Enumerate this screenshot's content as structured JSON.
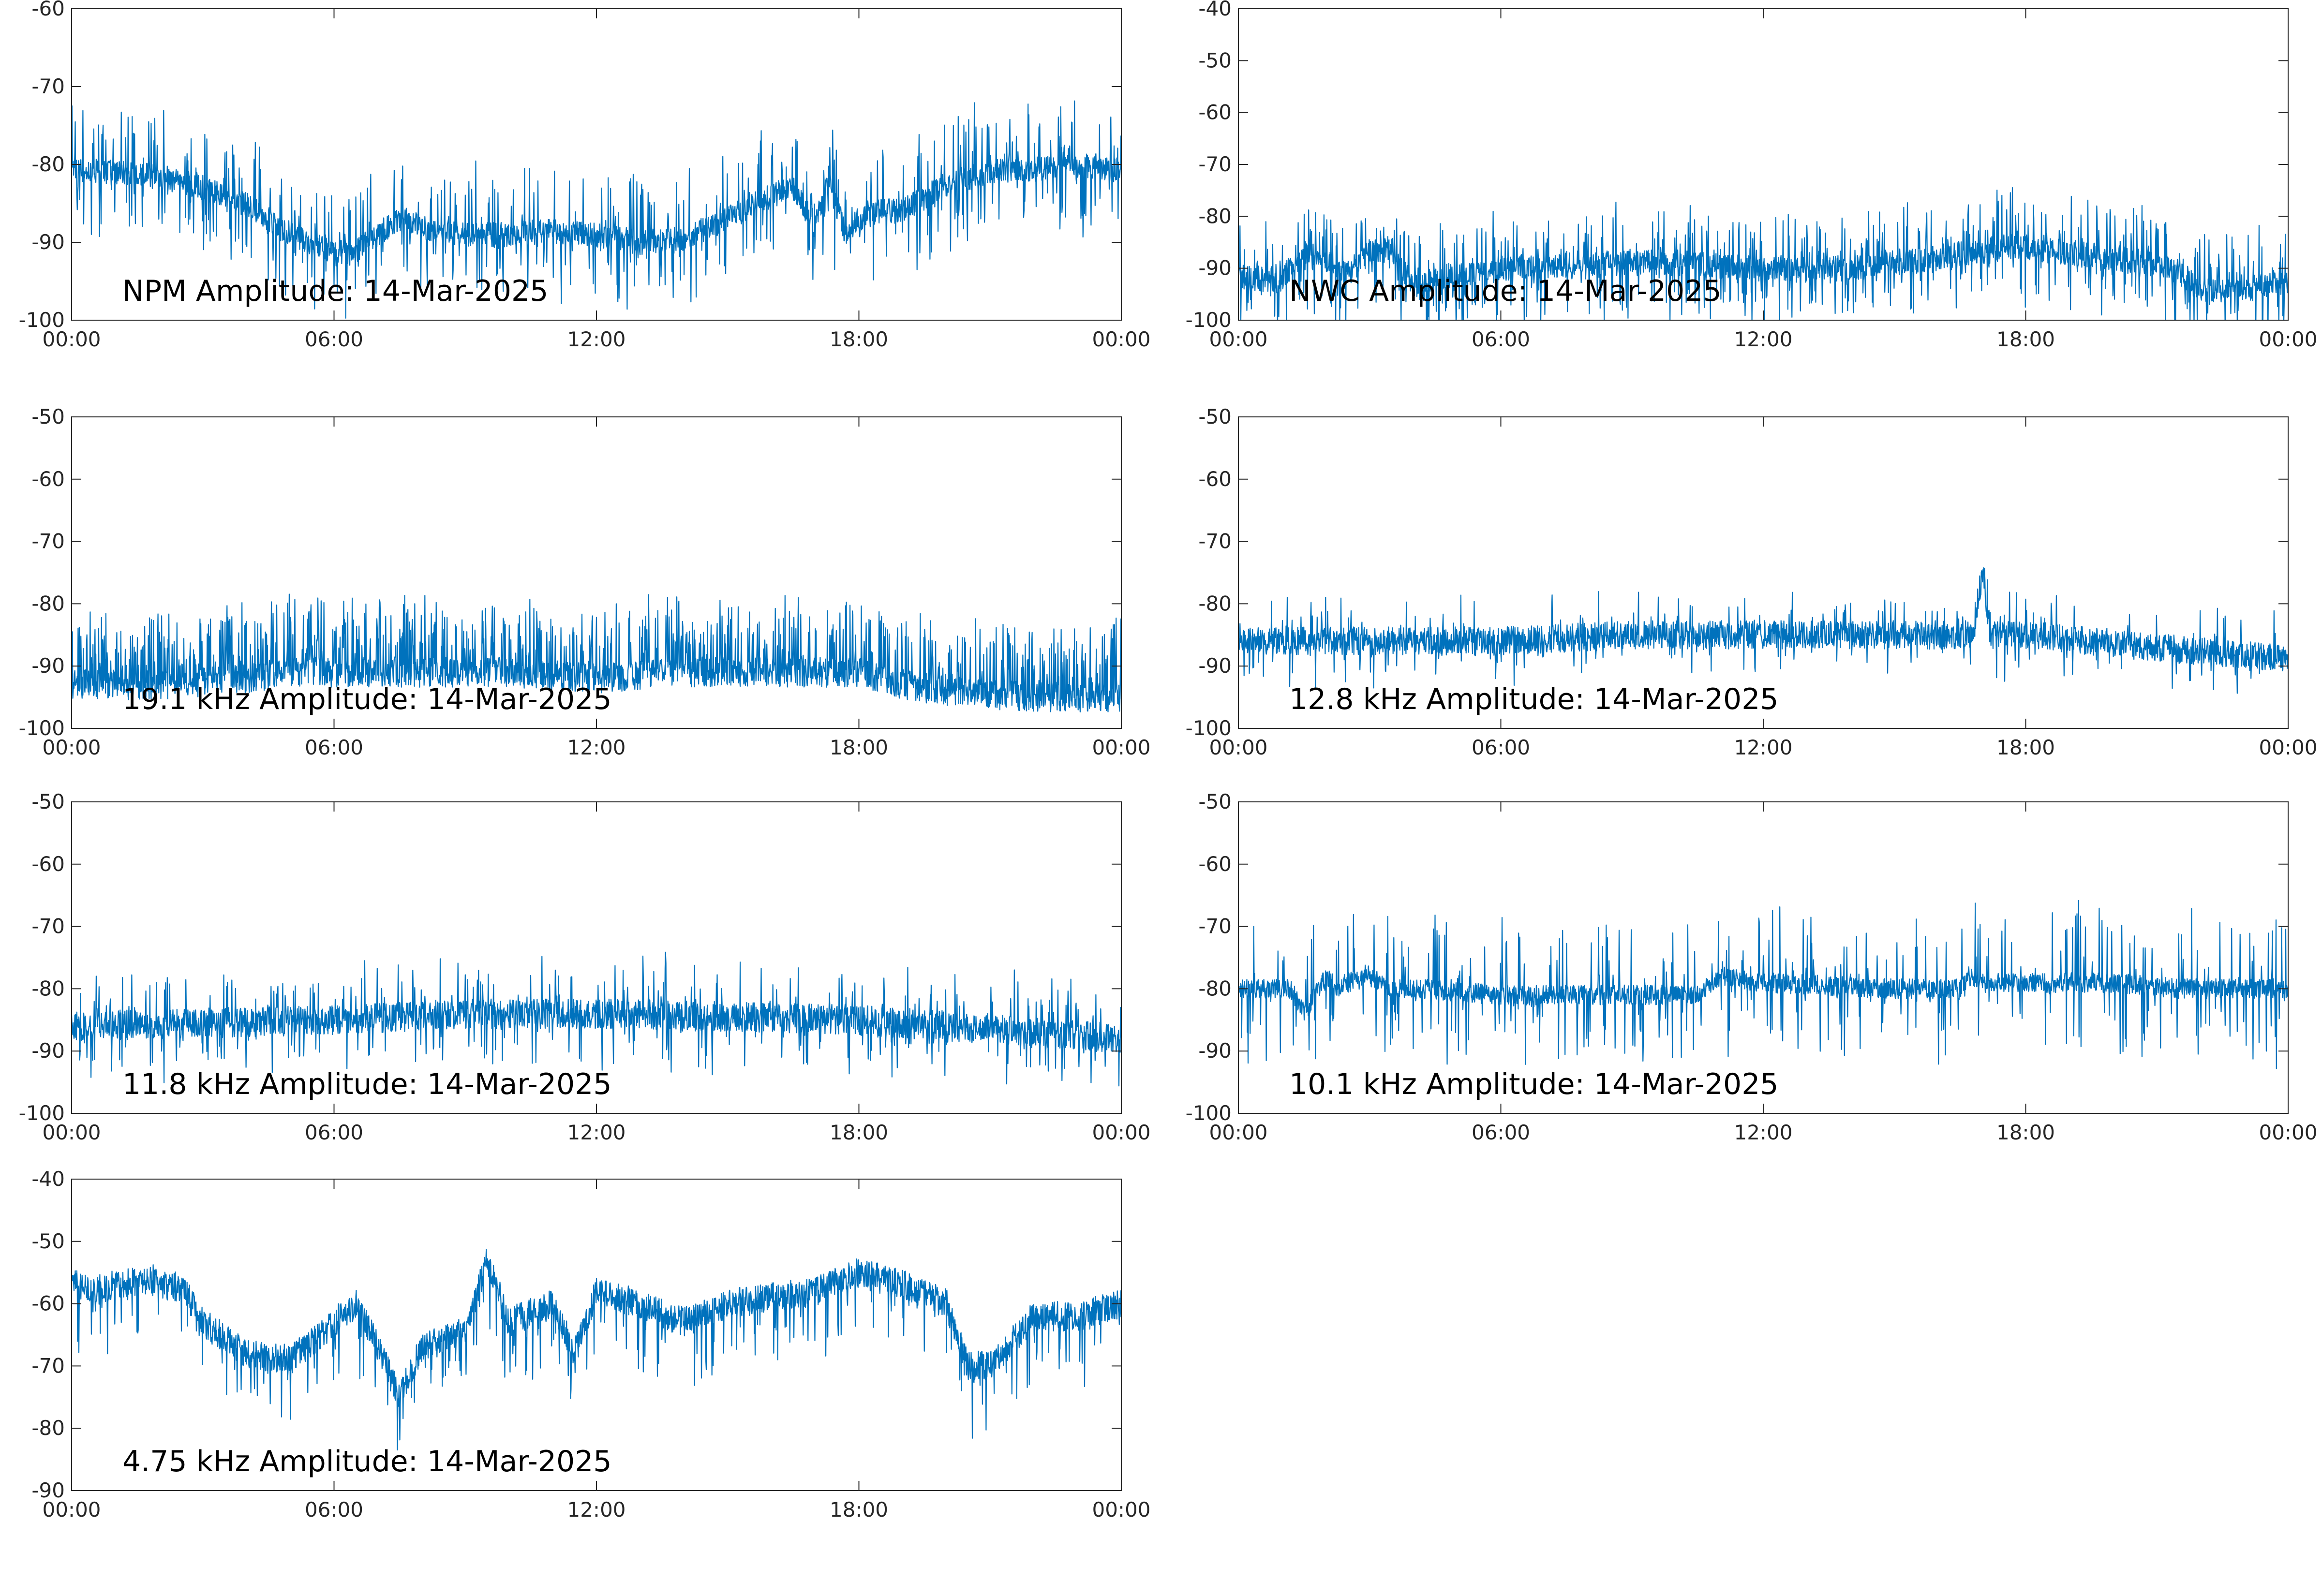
{
  "figure": {
    "line_color": "#0072bd",
    "axes_color": "#262626",
    "background": "#ffffff"
  },
  "chart_data": [
    {
      "type": "line",
      "title": "NPM Amplitude: 14-Mar-2025",
      "xlim": [
        "00:00",
        "24:00"
      ],
      "ylim": [
        -100,
        -60
      ],
      "xticks": [
        "00:00",
        "06:00",
        "12:00",
        "18:00",
        "00:00"
      ],
      "yticks": [
        "-60",
        "-70",
        "-80",
        "-90",
        "-100"
      ],
      "series": [
        {
          "x_hours": [
            0,
            1,
            2,
            3,
            4,
            5,
            6,
            6.5,
            7,
            7.5,
            8,
            9,
            10,
            11,
            12,
            13,
            14,
            15,
            16,
            16.5,
            17,
            17.3,
            17.7,
            18,
            18.5,
            19,
            20,
            21,
            22,
            22.5,
            22.7,
            23,
            24
          ],
          "y": [
            -80.5,
            -81,
            -81.5,
            -83,
            -85,
            -89,
            -91.5,
            -91,
            -89,
            -87,
            -88,
            -89,
            -89,
            -88.5,
            -89,
            -90,
            -89.5,
            -87,
            -84,
            -83,
            -88,
            -82,
            -89,
            -87,
            -86,
            -86,
            -82.5,
            -81,
            -80.5,
            -80.5,
            -79,
            -80.5,
            -80.5
          ],
          "noise": 1.6,
          "spikes": 0.22,
          "spike_dir": 0,
          "spike_amp": 8
        }
      ]
    },
    {
      "type": "line",
      "title": "NWC Amplitude: 14-Mar-2025",
      "xlim": [
        "00:00",
        "24:00"
      ],
      "ylim": [
        -100,
        -40
      ],
      "xticks": [
        "00:00",
        "06:00",
        "12:00",
        "18:00",
        "00:00"
      ],
      "yticks": [
        "-40",
        "-50",
        "-60",
        "-70",
        "-80",
        "-90",
        "-100"
      ],
      "series": [
        {
          "x_hours": [
            0,
            1,
            1.5,
            2,
            2.5,
            3,
            3.5,
            4,
            5,
            6,
            8,
            10,
            12,
            14,
            16,
            16.5,
            17,
            17.5,
            18,
            19,
            20,
            21,
            22,
            23,
            24
          ],
          "y": [
            -92,
            -92,
            -87,
            -89,
            -91,
            -87,
            -86,
            -94,
            -91,
            -90,
            -89,
            -89,
            -90,
            -90,
            -88,
            -87,
            -87,
            -86,
            -86,
            -87,
            -88,
            -89,
            -94,
            -94,
            -93
          ],
          "noise": 2.5,
          "spikes": 0.28,
          "spike_dir": 0,
          "spike_amp": 10
        }
      ]
    },
    {
      "type": "line",
      "title": "19.1 kHz Amplitude: 14-Mar-2025",
      "xlim": [
        "00:00",
        "24:00"
      ],
      "ylim": [
        -100,
        -50
      ],
      "xticks": [
        "00:00",
        "06:00",
        "12:00",
        "18:00",
        "00:00"
      ],
      "yticks": [
        "-50",
        "-60",
        "-70",
        "-80",
        "-90",
        "-100"
      ],
      "series": [
        {
          "x_hours": [
            0,
            2,
            4,
            5,
            6,
            8,
            10,
            12,
            14,
            16,
            18,
            19,
            20,
            22,
            24
          ],
          "y": [
            -93,
            -93,
            -92,
            -91,
            -91,
            -91,
            -91,
            -92,
            -91,
            -91,
            -91,
            -93,
            -94,
            -95,
            -95
          ],
          "noise": 2.4,
          "spikes": 0.3,
          "spike_dir": 1,
          "spike_amp": 11
        }
      ]
    },
    {
      "type": "line",
      "title": "12.8 kHz Amplitude: 14-Mar-2025",
      "xlim": [
        "00:00",
        "24:00"
      ],
      "ylim": [
        -100,
        -50
      ],
      "xticks": [
        "00:00",
        "06:00",
        "12:00",
        "18:00",
        "00:00"
      ],
      "yticks": [
        "-50",
        "-60",
        "-70",
        "-80",
        "-90",
        "-100"
      ],
      "series": [
        {
          "x_hours": [
            0,
            3,
            6,
            9,
            12,
            15,
            16.8,
            17,
            17.2,
            18,
            21,
            24
          ],
          "y": [
            -86,
            -86,
            -86,
            -85,
            -85,
            -85,
            -85,
            -75,
            -85,
            -85,
            -87,
            -89
          ],
          "noise": 2.3,
          "spikes": 0.14,
          "spike_dir": 0,
          "spike_amp": 6
        }
      ]
    },
    {
      "type": "line",
      "title": "11.8 kHz Amplitude: 14-Mar-2025",
      "xlim": [
        "00:00",
        "24:00"
      ],
      "ylim": [
        -100,
        -50
      ],
      "xticks": [
        "00:00",
        "06:00",
        "12:00",
        "18:00",
        "00:00"
      ],
      "yticks": [
        "-50",
        "-60",
        "-70",
        "-80",
        "-90",
        "-100"
      ],
      "series": [
        {
          "x_hours": [
            0,
            3,
            6,
            9,
            12,
            15,
            18,
            20,
            22,
            24
          ],
          "y": [
            -86,
            -85.5,
            -85,
            -84,
            -84,
            -84.5,
            -85,
            -86,
            -87,
            -88
          ],
          "noise": 2.4,
          "spikes": 0.18,
          "spike_dir": 0,
          "spike_amp": 8
        }
      ]
    },
    {
      "type": "line",
      "title": "10.1 kHz Amplitude: 14-Mar-2025",
      "xlim": [
        "00:00",
        "24:00"
      ],
      "ylim": [
        -100,
        -50
      ],
      "xticks": [
        "00:00",
        "06:00",
        "12:00",
        "18:00",
        "00:00"
      ],
      "yticks": [
        "-50",
        "-60",
        "-70",
        "-80",
        "-90",
        "-100"
      ],
      "series": [
        {
          "x_hours": [
            0,
            1.2,
            1.5,
            2,
            2.3,
            2.5,
            3,
            3.5,
            4,
            4.2,
            6,
            10.5,
            11,
            12,
            15,
            16.5,
            16.7,
            17,
            18,
            20,
            21.5,
            22,
            23,
            24
          ],
          "y": [
            -80,
            -80,
            -84,
            -78,
            -80,
            -79,
            -78,
            -80,
            -80,
            -80,
            -81,
            -81,
            -78,
            -79,
            -80,
            -80,
            -78,
            -79,
            -79,
            -79,
            -80,
            -80,
            -80,
            -80
          ],
          "noise": 1.6,
          "spikes": 0.18,
          "spike_dir": 0,
          "spike_amp": 12
        }
      ]
    },
    {
      "type": "line",
      "title": "4.75 kHz Amplitude: 14-Mar-2025",
      "xlim": [
        "00:00",
        "24:00"
      ],
      "ylim": [
        -90,
        -40
      ],
      "xticks": [
        "00:00",
        "06:00",
        "12:00",
        "18:00",
        "00:00"
      ],
      "yticks": [
        "-40",
        "-50",
        "-60",
        "-70",
        "-80",
        "-90"
      ],
      "series": [
        {
          "x_hours": [
            0,
            0.5,
            1,
            2,
            2.6,
            3,
            4,
            5,
            6,
            6.5,
            7,
            7.5,
            8,
            9,
            9.5,
            10,
            11,
            11.5,
            12,
            13,
            14,
            15,
            16,
            17,
            18,
            19,
            20,
            20.5,
            21,
            22,
            23,
            24
          ],
          "y": [
            -56,
            -58,
            -57,
            -56,
            -58,
            -63,
            -68,
            -69,
            -63,
            -60,
            -67,
            -75,
            -67,
            -64,
            -53,
            -63,
            -60,
            -68,
            -58,
            -60,
            -63,
            -60,
            -59,
            -58,
            -55,
            -57,
            -60,
            -70,
            -70,
            -62,
            -62,
            -60
          ],
          "noise": 2.4,
          "spikes": 0.1,
          "spike_dir": -1,
          "spike_amp": 10
        }
      ]
    }
  ]
}
